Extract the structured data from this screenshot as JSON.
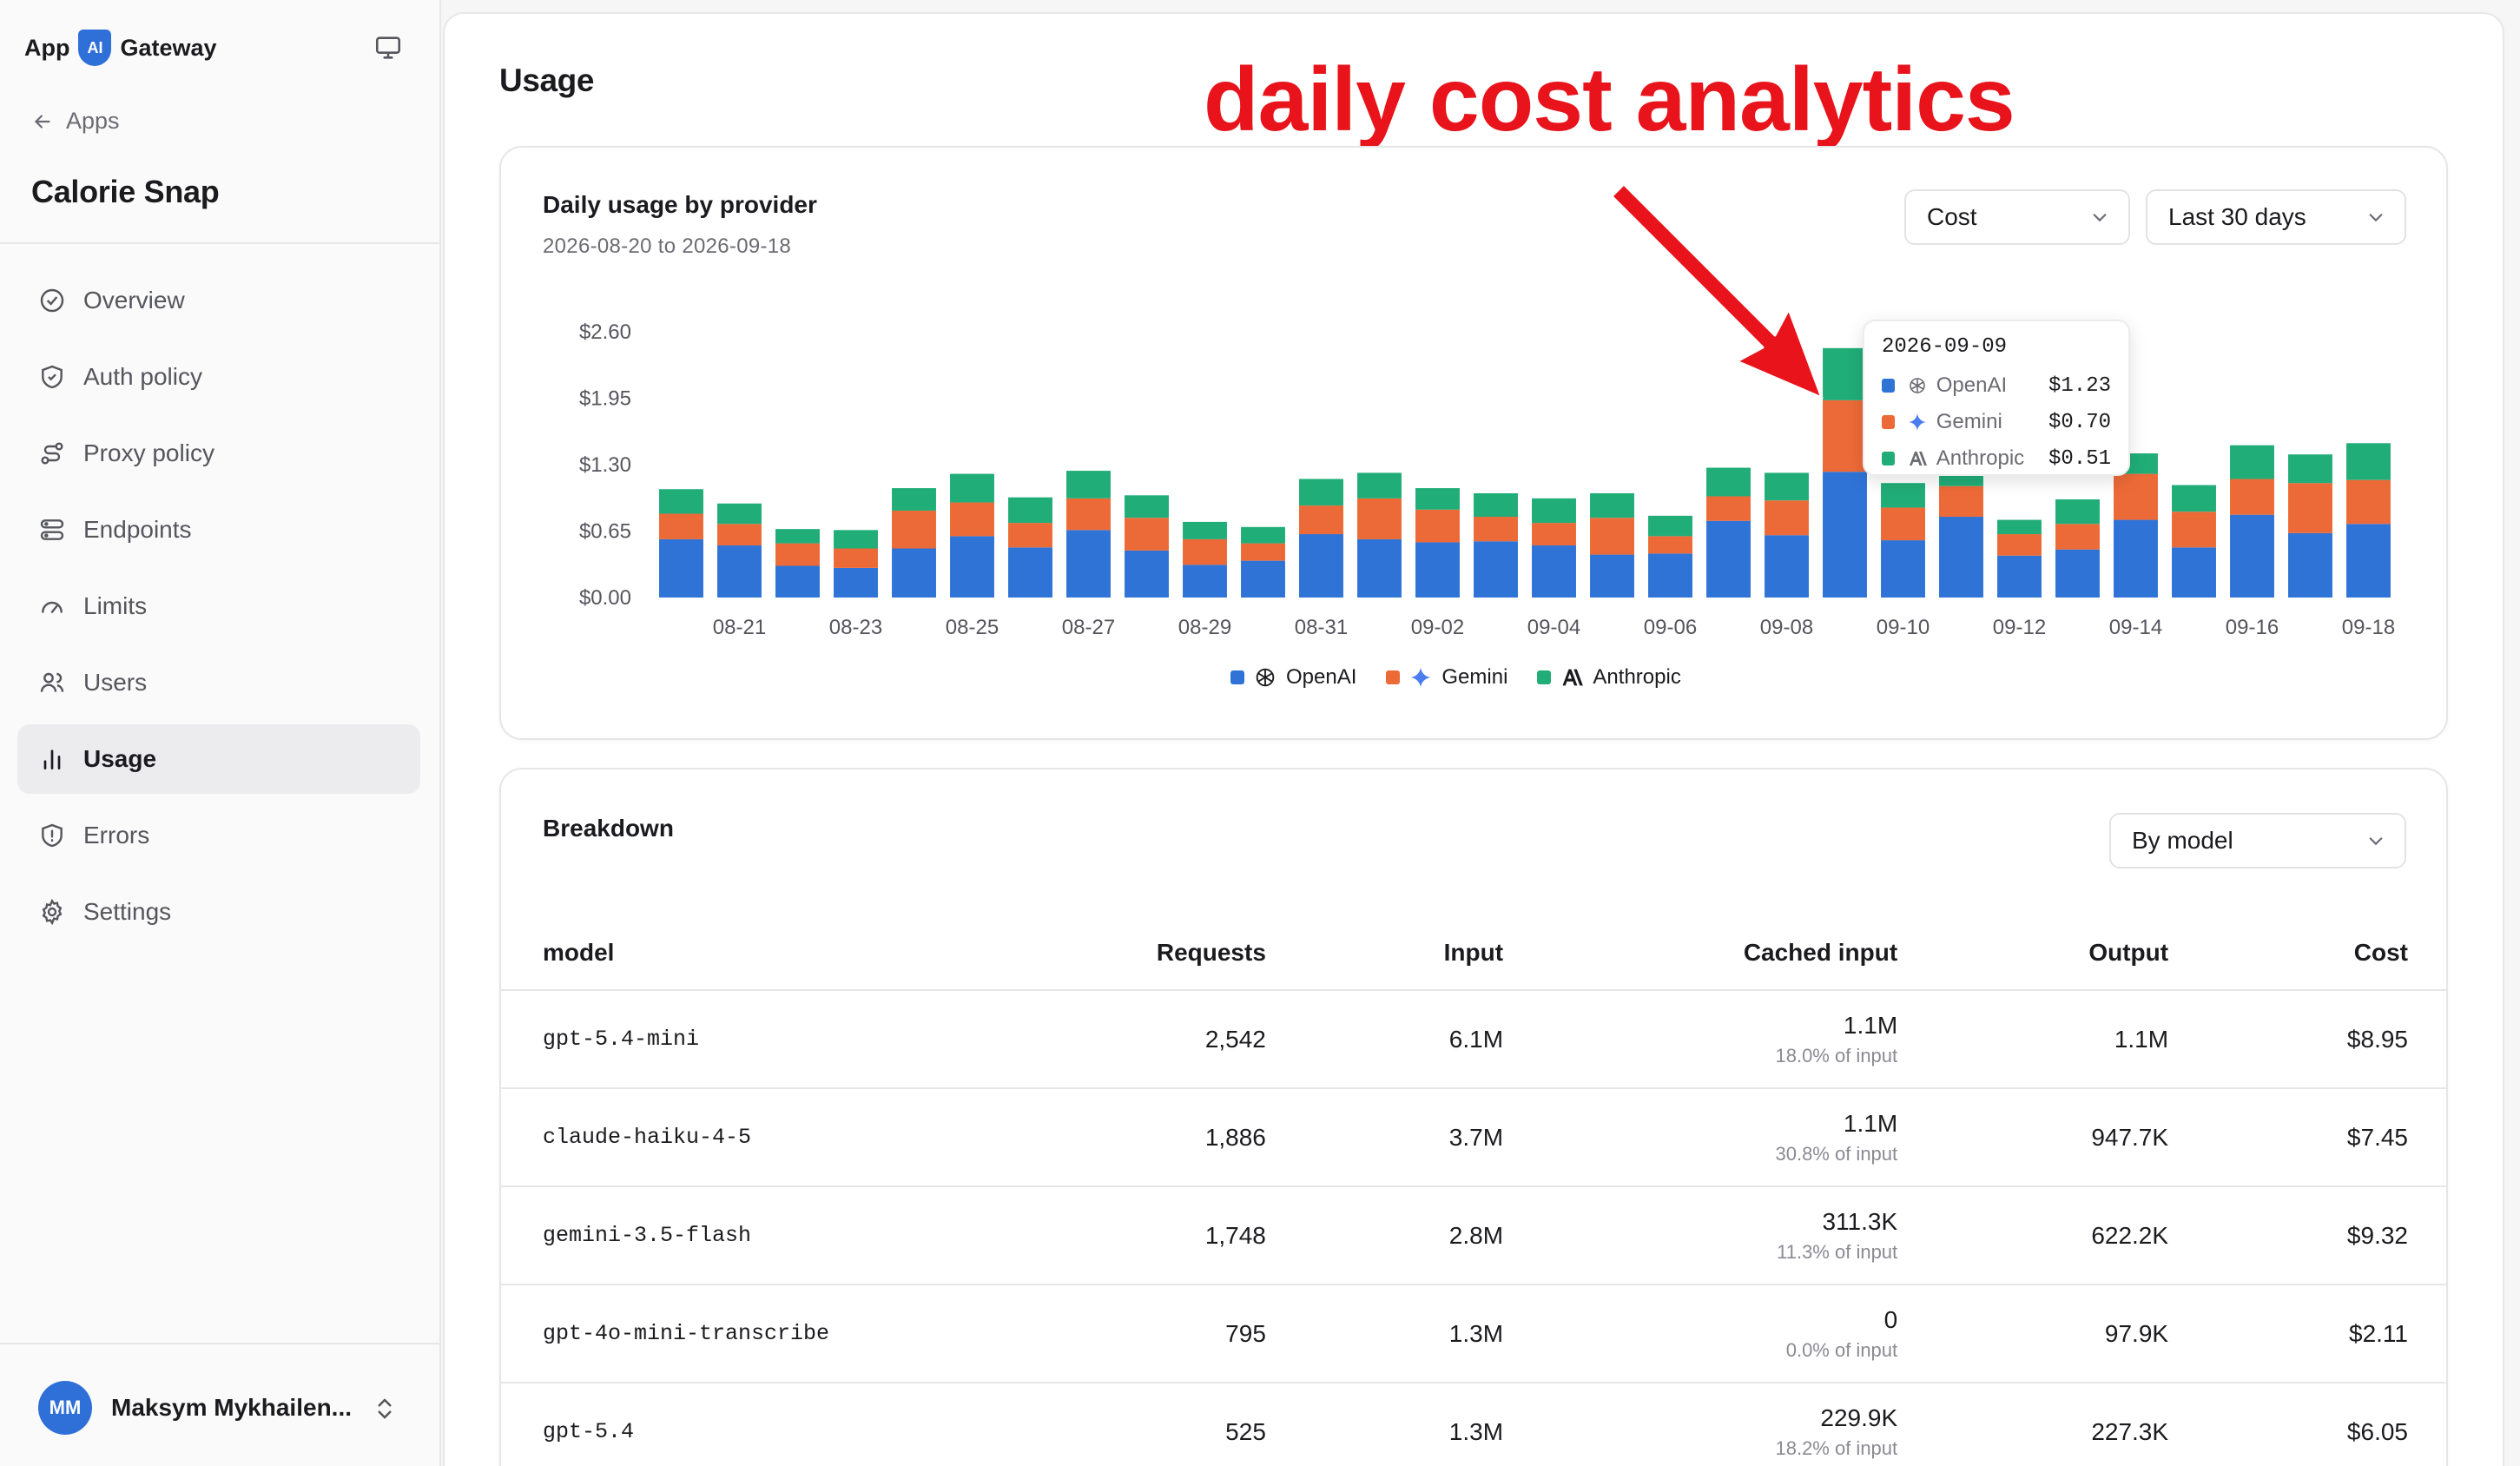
{
  "app": {
    "brand_left": "App",
    "brand_badge": "AI",
    "brand_right": "Gateway"
  },
  "sidebar": {
    "back_label": "Apps",
    "project_name": "Calorie Snap",
    "items": [
      {
        "label": "Overview",
        "icon": "check-circle-icon"
      },
      {
        "label": "Auth policy",
        "icon": "shield-check-icon"
      },
      {
        "label": "Proxy policy",
        "icon": "route-icon"
      },
      {
        "label": "Endpoints",
        "icon": "server-icon"
      },
      {
        "label": "Limits",
        "icon": "gauge-icon"
      },
      {
        "label": "Users",
        "icon": "users-icon"
      },
      {
        "label": "Usage",
        "icon": "bar-chart-icon",
        "active": true
      },
      {
        "label": "Errors",
        "icon": "shield-alert-icon"
      },
      {
        "label": "Settings",
        "icon": "gear-icon"
      }
    ],
    "user": {
      "initials": "MM",
      "name": "Maksym Mykhailen..."
    }
  },
  "page": {
    "title": "Usage",
    "annotation": "daily cost analytics"
  },
  "chart_panel": {
    "title": "Daily usage by provider",
    "range_label": "2026-08-20 to 2026-09-18",
    "metric_select": "Cost",
    "period_select": "Last 30 days"
  },
  "chart_data": {
    "type": "bar",
    "stacked": true,
    "title": "Daily usage by provider",
    "y_tick_labels": [
      "$0.00",
      "$0.65",
      "$1.30",
      "$1.95",
      "$2.60"
    ],
    "ylim": [
      0,
      2.6
    ],
    "x_tick_labels": [
      "08-21",
      "08-23",
      "08-25",
      "08-27",
      "08-29",
      "08-31",
      "09-02",
      "09-04",
      "09-06",
      "09-08",
      "09-10",
      "09-12",
      "09-14",
      "09-16",
      "09-18"
    ],
    "categories": [
      "08-20",
      "08-21",
      "08-22",
      "08-23",
      "08-24",
      "08-25",
      "08-26",
      "08-27",
      "08-28",
      "08-29",
      "08-30",
      "08-31",
      "09-01",
      "09-02",
      "09-03",
      "09-04",
      "09-05",
      "09-06",
      "09-07",
      "09-08",
      "09-09",
      "09-10",
      "09-11",
      "09-12",
      "09-13",
      "09-14",
      "09-15",
      "09-16",
      "09-17",
      "09-18"
    ],
    "series": [
      {
        "name": "OpenAI",
        "color": "#2f73d6",
        "values": [
          0.57,
          0.51,
          0.31,
          0.29,
          0.48,
          0.6,
          0.49,
          0.66,
          0.46,
          0.32,
          0.36,
          0.62,
          0.57,
          0.54,
          0.55,
          0.51,
          0.42,
          0.43,
          0.75,
          0.61,
          1.23,
          0.56,
          0.79,
          0.41,
          0.47,
          0.76,
          0.49,
          0.81,
          0.63,
          0.72
        ]
      },
      {
        "name": "Gemini",
        "color": "#ec6a37",
        "values": [
          0.25,
          0.21,
          0.22,
          0.19,
          0.37,
          0.33,
          0.24,
          0.31,
          0.32,
          0.25,
          0.17,
          0.28,
          0.4,
          0.32,
          0.24,
          0.22,
          0.36,
          0.17,
          0.24,
          0.34,
          0.7,
          0.32,
          0.3,
          0.21,
          0.25,
          0.45,
          0.35,
          0.35,
          0.49,
          0.43
        ]
      },
      {
        "name": "Anthropic",
        "color": "#21ad78",
        "values": [
          0.24,
          0.2,
          0.14,
          0.18,
          0.22,
          0.28,
          0.25,
          0.27,
          0.22,
          0.17,
          0.16,
          0.26,
          0.25,
          0.21,
          0.23,
          0.24,
          0.24,
          0.2,
          0.28,
          0.27,
          0.51,
          0.24,
          0.27,
          0.14,
          0.24,
          0.2,
          0.26,
          0.33,
          0.28,
          0.36
        ]
      }
    ],
    "legend_position": "bottom-center",
    "grid": false
  },
  "tooltip": {
    "date": "2026-09-09",
    "rows": [
      {
        "name": "OpenAI",
        "value": "$1.23"
      },
      {
        "name": "Gemini",
        "value": "$0.70"
      },
      {
        "name": "Anthropic",
        "value": "$0.51"
      }
    ]
  },
  "breakdown": {
    "title": "Breakdown",
    "group_select": "By model",
    "columns": [
      "model",
      "Requests",
      "Input",
      "Cached input",
      "Output",
      "Cost"
    ],
    "rows": [
      {
        "model": "gpt-5.4-mini",
        "requests": "2,542",
        "input": "6.1M",
        "cached": "1.1M",
        "cached_pct": "18.0% of input",
        "output": "1.1M",
        "cost": "$8.95"
      },
      {
        "model": "claude-haiku-4-5",
        "requests": "1,886",
        "input": "3.7M",
        "cached": "1.1M",
        "cached_pct": "30.8% of input",
        "output": "947.7K",
        "cost": "$7.45"
      },
      {
        "model": "gemini-3.5-flash",
        "requests": "1,748",
        "input": "2.8M",
        "cached": "311.3K",
        "cached_pct": "11.3% of input",
        "output": "622.2K",
        "cost": "$9.32"
      },
      {
        "model": "gpt-4o-mini-transcribe",
        "requests": "795",
        "input": "1.3M",
        "cached": "0",
        "cached_pct": "0.0% of input",
        "output": "97.9K",
        "cost": "$2.11"
      },
      {
        "model": "gpt-5.4",
        "requests": "525",
        "input": "1.3M",
        "cached": "229.9K",
        "cached_pct": "18.2% of input",
        "output": "227.3K",
        "cost": "$6.05"
      }
    ]
  }
}
